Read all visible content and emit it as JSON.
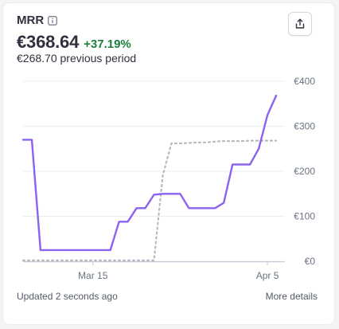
{
  "metric": {
    "title": "MRR",
    "info_icon": "info-icon",
    "value": "€368.64",
    "change": "+37.19%",
    "change_color": "#1b7f3b",
    "previous": "€268.70 previous period"
  },
  "toolbar": {
    "export_icon": "share-export-icon"
  },
  "footer": {
    "updated": "Updated 2 seconds ago",
    "more": "More details"
  },
  "chart_data": {
    "type": "line",
    "title": "",
    "xlabel": "",
    "ylabel": "",
    "ylim": [
      0,
      400
    ],
    "yticks": [
      0,
      100,
      200,
      300,
      400
    ],
    "ytick_labels": [
      "€0",
      "€100",
      "€200",
      "€300",
      "€400"
    ],
    "xlim": [
      0,
      30
    ],
    "xticks": [
      8,
      28
    ],
    "xtick_labels": [
      "Mar 15",
      "Apr 5"
    ],
    "grid": "horizontal",
    "legend": "none",
    "series": [
      {
        "style": "solid",
        "color": "#8a63f1",
        "points": [
          [
            0,
            270
          ],
          [
            1,
            270
          ],
          [
            2,
            25
          ],
          [
            3,
            25
          ],
          [
            4,
            25
          ],
          [
            5,
            25
          ],
          [
            6,
            25
          ],
          [
            7,
            25
          ],
          [
            8,
            25
          ],
          [
            9,
            25
          ],
          [
            10,
            25
          ],
          [
            11,
            88
          ],
          [
            12,
            88
          ],
          [
            13,
            118
          ],
          [
            14,
            118
          ],
          [
            15,
            148
          ],
          [
            16,
            150
          ],
          [
            17,
            150
          ],
          [
            18,
            150
          ],
          [
            19,
            118
          ],
          [
            20,
            118
          ],
          [
            21,
            118
          ],
          [
            22,
            118
          ],
          [
            23,
            130
          ],
          [
            24,
            215
          ],
          [
            25,
            215
          ],
          [
            26,
            215
          ],
          [
            27,
            250
          ],
          [
            28,
            325
          ],
          [
            29,
            368
          ]
        ]
      },
      {
        "style": "dotted",
        "color": "#b5b9c2",
        "points": [
          [
            0,
            2
          ],
          [
            1,
            2
          ],
          [
            2,
            2
          ],
          [
            3,
            2
          ],
          [
            4,
            2
          ],
          [
            5,
            2
          ],
          [
            6,
            2
          ],
          [
            7,
            2
          ],
          [
            8,
            2
          ],
          [
            9,
            2
          ],
          [
            10,
            2
          ],
          [
            11,
            2
          ],
          [
            12,
            2
          ],
          [
            13,
            2
          ],
          [
            14,
            2
          ],
          [
            15,
            2
          ],
          [
            16,
            190
          ],
          [
            17,
            262
          ],
          [
            18,
            262
          ],
          [
            19,
            263
          ],
          [
            20,
            264
          ],
          [
            21,
            264
          ],
          [
            22,
            266
          ],
          [
            23,
            267
          ],
          [
            24,
            267
          ],
          [
            25,
            267
          ],
          [
            26,
            268
          ],
          [
            27,
            268
          ],
          [
            28,
            268
          ],
          [
            29,
            268
          ]
        ]
      }
    ]
  }
}
